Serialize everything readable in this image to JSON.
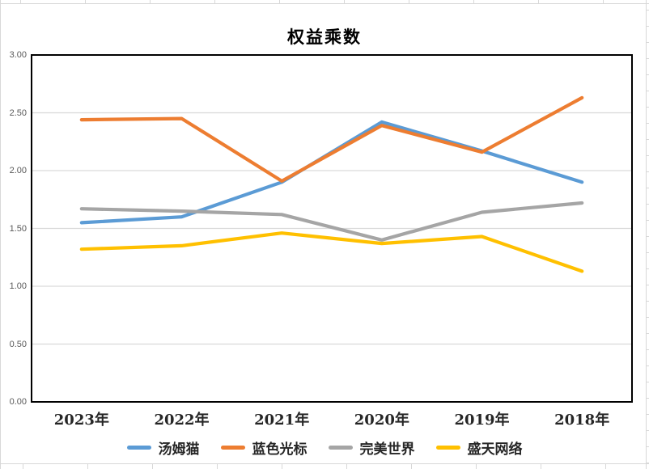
{
  "chart_data": {
    "type": "line",
    "title": "权益乘数",
    "categories": [
      "2023年",
      "2022年",
      "2021年",
      "2020年",
      "2019年",
      "2018年"
    ],
    "series": [
      {
        "name": "汤姆猫",
        "color": "#5B9BD5",
        "values": [
          1.55,
          1.6,
          1.9,
          2.42,
          2.17,
          1.9
        ]
      },
      {
        "name": "蓝色光标",
        "color": "#ED7D31",
        "values": [
          2.44,
          2.45,
          1.91,
          2.39,
          2.16,
          2.63
        ]
      },
      {
        "name": "完美世界",
        "color": "#A5A5A5",
        "values": [
          1.67,
          1.65,
          1.62,
          1.4,
          1.64,
          1.72
        ]
      },
      {
        "name": "盛天网络",
        "color": "#FFC000",
        "values": [
          1.32,
          1.35,
          1.46,
          1.37,
          1.43,
          1.13
        ]
      }
    ],
    "ylim": [
      0,
      3
    ],
    "ytick_step": 0.5,
    "ytick_labels_top_to_bottom": [
      "3.00",
      "2.50",
      "2.00",
      "1.50",
      "1.00",
      "0.50",
      "0.00"
    ],
    "grid": true,
    "gridline_color": "#D9D9D9",
    "plot_border_color": "#000000",
    "legend_position": "bottom",
    "xlabel": "",
    "ylabel": ""
  }
}
